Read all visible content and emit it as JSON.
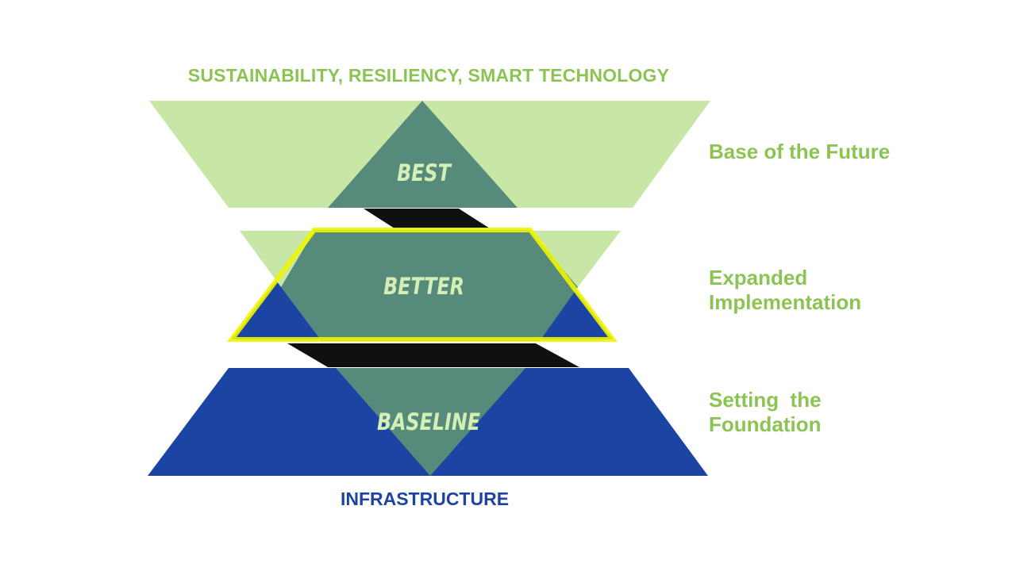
{
  "colors": {
    "light_green": "#c8e6a6",
    "teal": "#568a7b",
    "blue": "#1c44a2",
    "black": "#101010",
    "highlight_yellow": "#f0f500",
    "label_green": "#8cc454",
    "tier_text": "#d4efb5"
  },
  "header": {
    "title": "SUSTAINABILITY, RESILIENCY, SMART TECHNOLOGY"
  },
  "footer": {
    "title": "INFRASTRUCTURE"
  },
  "tiers": {
    "best": {
      "label": "BEST",
      "description_lines": [
        "Base of the Future"
      ]
    },
    "better": {
      "label": "BETTER",
      "description_lines": [
        "Expanded",
        "Implementation"
      ],
      "highlighted": true
    },
    "baseline": {
      "label": "BASELINE",
      "description_lines": [
        "Setting  the",
        "Foundation"
      ]
    }
  }
}
